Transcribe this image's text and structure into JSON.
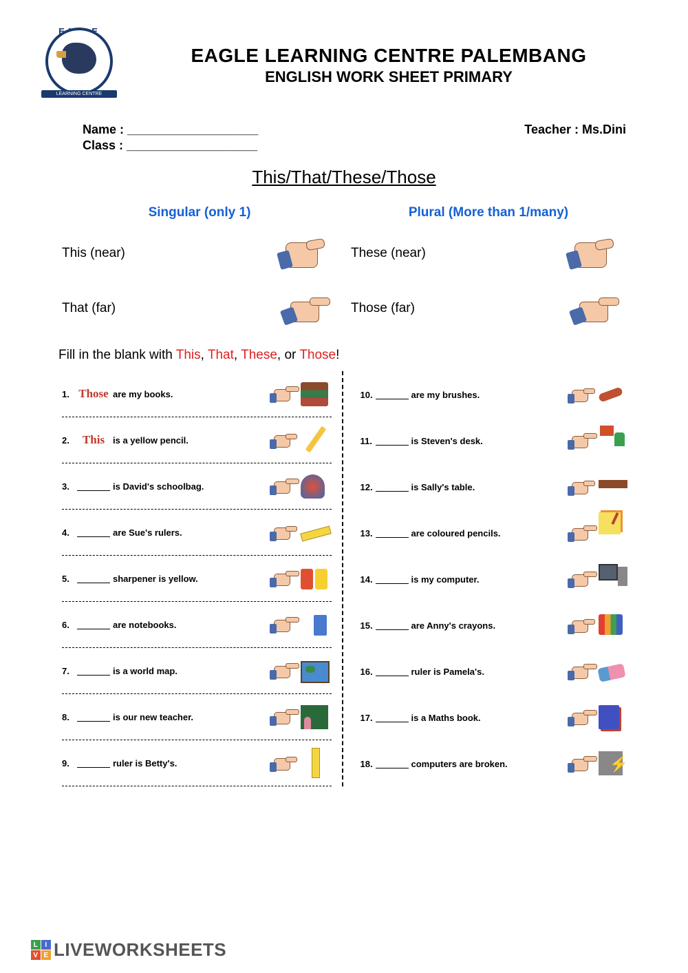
{
  "logo": {
    "top": "EAGLE",
    "banner": "LEARNING CENTRE"
  },
  "title1": "EAGLE LEARNING CENTRE PALEMBANG",
  "title2": "ENGLISH WORK SHEET PRIMARY",
  "info": {
    "name_label": "Name : ___________________",
    "class_label": "Class : ___________________",
    "teacher_label": "Teacher : Ms.Dini"
  },
  "lesson_title": "This/That/These/Those",
  "concept": {
    "singular_head": "Singular (only 1)",
    "plural_head": "Plural (More than 1/many)",
    "this": "This (near)",
    "that": "That (far)",
    "these": "These (near)",
    "those": "Those (far)"
  },
  "instruction": {
    "pre": "Fill in the blank with ",
    "w1": "This",
    "c1": ", ",
    "w2": "That",
    "c2": ", ",
    "w3": "These",
    "c3": ", or ",
    "w4": "Those",
    "end": "!"
  },
  "items_left": [
    {
      "n": "1.",
      "ans": "Those",
      "txt": "are my books.",
      "icon": "books",
      "hand": "far"
    },
    {
      "n": "2.",
      "ans": "This",
      "txt": "is a yellow pencil.",
      "icon": "pencil",
      "hand": "near"
    },
    {
      "n": "3.",
      "ans": "",
      "txt": "is David's schoolbag.",
      "icon": "bag",
      "hand": "far"
    },
    {
      "n": "4.",
      "ans": "",
      "txt": "are Sue's rulers.",
      "icon": "ruler",
      "hand": "near"
    },
    {
      "n": "5.",
      "ans": "",
      "txt": "sharpener is yellow.",
      "icon": "sharpener",
      "hand": "far"
    },
    {
      "n": "6.",
      "ans": "",
      "txt": "are notebooks.",
      "icon": "notebook",
      "hand": "far"
    },
    {
      "n": "7.",
      "ans": "",
      "txt": "is a world map.",
      "icon": "worldmap",
      "hand": "far"
    },
    {
      "n": "8.",
      "ans": "",
      "txt": "is our new teacher.",
      "icon": "teacher",
      "hand": "far"
    },
    {
      "n": "9.",
      "ans": "",
      "txt": "ruler is Betty's.",
      "icon": "ruler2",
      "hand": "near"
    }
  ],
  "items_right": [
    {
      "n": "10.",
      "ans": "",
      "txt": "are my brushes.",
      "icon": "brushes",
      "hand": "near"
    },
    {
      "n": "11.",
      "ans": "",
      "txt": "is Steven's desk.",
      "icon": "desk",
      "hand": "far"
    },
    {
      "n": "12.",
      "ans": "",
      "txt": "is Sally's table.",
      "icon": "table",
      "hand": "near"
    },
    {
      "n": "13.",
      "ans": "",
      "txt": "are coloured pencils.",
      "icon": "pencils",
      "hand": "far"
    },
    {
      "n": "14.",
      "ans": "",
      "txt": "is my computer.",
      "icon": "computer",
      "hand": "far"
    },
    {
      "n": "15.",
      "ans": "",
      "txt": "are Anny's crayons.",
      "icon": "crayons",
      "hand": "near"
    },
    {
      "n": "16.",
      "ans": "",
      "txt": "ruler is Pamela's.",
      "icon": "eraser",
      "hand": "far"
    },
    {
      "n": "17.",
      "ans": "",
      "txt": "is a Maths book.",
      "icon": "mathbook",
      "hand": "far"
    },
    {
      "n": "18.",
      "ans": "",
      "txt": "computers are broken.",
      "icon": "brokencpu",
      "hand": "far"
    }
  ],
  "footer": "LIVEWORKSHEETS"
}
